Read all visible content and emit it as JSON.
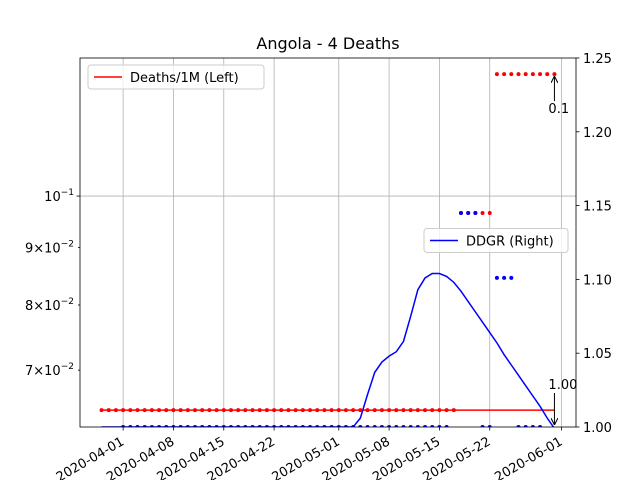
{
  "chart_data": {
    "type": "line",
    "title": "Angola - 4 Deaths",
    "x": [
      "2020-03-29",
      "2020-03-30",
      "2020-03-31",
      "2020-04-01",
      "2020-04-02",
      "2020-04-03",
      "2020-04-04",
      "2020-04-05",
      "2020-04-06",
      "2020-04-07",
      "2020-04-08",
      "2020-04-09",
      "2020-04-10",
      "2020-04-11",
      "2020-04-12",
      "2020-04-13",
      "2020-04-14",
      "2020-04-15",
      "2020-04-16",
      "2020-04-17",
      "2020-04-18",
      "2020-04-19",
      "2020-04-20",
      "2020-04-21",
      "2020-04-22",
      "2020-04-23",
      "2020-04-24",
      "2020-04-25",
      "2020-04-26",
      "2020-04-27",
      "2020-04-28",
      "2020-04-29",
      "2020-04-30",
      "2020-05-01",
      "2020-05-02",
      "2020-05-03",
      "2020-05-04",
      "2020-05-05",
      "2020-05-06",
      "2020-05-07",
      "2020-05-08",
      "2020-05-09",
      "2020-05-10",
      "2020-05-11",
      "2020-05-12",
      "2020-05-13",
      "2020-05-14",
      "2020-05-15",
      "2020-05-16",
      "2020-05-17",
      "2020-05-18",
      "2020-05-19",
      "2020-05-20",
      "2020-05-21",
      "2020-05-22",
      "2020-05-23",
      "2020-05-24",
      "2020-05-25",
      "2020-05-26",
      "2020-05-27",
      "2020-05-28",
      "2020-05-29",
      "2020-05-30",
      "2020-05-31"
    ],
    "xlim": [
      "2020-03-26",
      "2020-06-03"
    ],
    "xticks": [
      "2020-04-01",
      "2020-04-08",
      "2020-04-15",
      "2020-04-22",
      "2020-05-01",
      "2020-05-08",
      "2020-05-15",
      "2020-05-22",
      "2020-06-01"
    ],
    "ylim": [
      0.0623,
      0.1327
    ],
    "y_scale": "log",
    "yticks": [
      {
        "value": 0.07,
        "label": "7×10",
        "exp": "−2",
        "minor": true
      },
      {
        "value": 0.08,
        "label": "8×10",
        "exp": "−2",
        "minor": true
      },
      {
        "value": 0.09,
        "label": "9×10",
        "exp": "−2",
        "minor": true
      },
      {
        "value": 0.1,
        "label": "10",
        "exp": "−1"
      }
    ],
    "y2lim": [
      1.0,
      1.25
    ],
    "y2ticks": [
      {
        "value": 1.0,
        "label": "1.00"
      },
      {
        "value": 1.05,
        "label": "1.05"
      },
      {
        "value": 1.1,
        "label": "1.10"
      },
      {
        "value": 1.15,
        "label": "1.15"
      },
      {
        "value": 1.2,
        "label": "1.20"
      },
      {
        "value": 1.25,
        "label": "1.25"
      }
    ],
    "grid": true,
    "series": [
      {
        "name": "Deaths/1M (Left)",
        "color": "#ff0000",
        "style": "line",
        "axis": "y",
        "legend": "upper left",
        "values": [
          0.0645,
          0.0645,
          0.0645,
          0.0645,
          0.0645,
          0.0645,
          0.0645,
          0.0645,
          0.0645,
          0.0645,
          0.0645,
          0.0645,
          0.0645,
          0.0645,
          0.0645,
          0.0645,
          0.0645,
          0.0645,
          0.0645,
          0.0645,
          0.0645,
          0.0645,
          0.0645,
          0.0645,
          0.0645,
          0.0645,
          0.0645,
          0.0645,
          0.0645,
          0.0645,
          0.0645,
          0.0645,
          0.0645,
          0.0645,
          0.0645,
          0.0645,
          0.0645,
          0.0645,
          0.0645,
          0.0645,
          0.0645,
          0.0645,
          0.0645,
          0.0645,
          0.0645,
          0.0645,
          0.0645,
          0.0645,
          0.0645,
          0.0645,
          0.0645,
          0.0645,
          0.0645,
          0.0645,
          0.0645,
          0.0645,
          0.0645,
          0.0645,
          0.0645,
          0.0645,
          0.0645,
          0.0645,
          0.0645,
          0.0645
        ]
      },
      {
        "name": "DDGR (Right)",
        "color": "#0000ff",
        "style": "line",
        "axis": "y2",
        "legend": "center right",
        "values": [
          1.0,
          1.0,
          1.0,
          1.0,
          1.0,
          1.0,
          1.0,
          1.0,
          1.0,
          1.0,
          1.0,
          1.0,
          1.0,
          1.0,
          1.0,
          1.0,
          1.0,
          1.0,
          1.0,
          1.0,
          1.0,
          1.0,
          1.0,
          1.0,
          1.0,
          1.0,
          1.0,
          1.0,
          1.0,
          1.0,
          1.0,
          1.0,
          1.0,
          1.0,
          1.0,
          1.0,
          1.006,
          1.022,
          1.037,
          1.044,
          1.048,
          1.051,
          1.058,
          1.075,
          1.093,
          1.101,
          1.104,
          1.104,
          1.102,
          1.098,
          1.092,
          1.085,
          1.078,
          1.071,
          1.064,
          1.057,
          1.049,
          1.042,
          1.035,
          1.028,
          1.021,
          1.014,
          1.006,
          0.999
        ]
      },
      {
        "color": "#ff0000",
        "style": "dots",
        "axis": "y",
        "values": [
          0.0645,
          0.0645,
          0.0645,
          0.0645,
          0.0645,
          0.0645,
          0.0645,
          0.0645,
          0.0645,
          0.0645,
          0.0645,
          0.0645,
          0.0645,
          0.0645,
          0.0645,
          0.0645,
          0.0645,
          0.0645,
          0.0645,
          0.0645,
          0.0645,
          0.0645,
          0.0645,
          0.0645,
          0.0645,
          0.0645,
          0.0645,
          0.0645,
          0.0645,
          0.0645,
          0.0645,
          0.0645,
          0.0645,
          0.0645,
          0.0645,
          0.0645,
          0.0645,
          0.0645,
          0.0645,
          0.0645,
          0.0645,
          0.0645,
          0.0645,
          0.0645,
          0.0645,
          0.0645,
          0.0645,
          0.0645,
          0.0645,
          0.0645,
          0.0966,
          0.0966,
          0.0966,
          0.0966,
          0.0966,
          0.1284,
          0.1284,
          0.1284,
          0.1284,
          0.1284,
          0.1284,
          0.1284,
          0.1284,
          0.1284
        ]
      },
      {
        "color": "#0000ff",
        "style": "dots",
        "axis": "y2",
        "values": [
          null,
          null,
          null,
          1.0,
          1.0,
          1.0,
          1.0,
          1.0,
          1.0,
          1.0,
          1.0,
          1.0,
          1.0,
          1.0,
          1.0,
          1.0,
          1.0,
          1.0,
          1.0,
          1.0,
          1.0,
          1.0,
          1.0,
          1.0,
          1.0,
          1.0,
          1.0,
          1.0,
          1.0,
          1.0,
          1.0,
          1.0,
          1.0,
          1.0,
          1.0,
          1.0,
          1.0,
          1.0,
          1.0,
          1.0,
          1.0,
          1.0,
          1.0,
          1.0,
          1.0,
          1.0,
          1.0,
          1.0,
          1.0,
          null,
          1.145,
          1.145,
          1.145,
          1.0,
          1.0,
          1.101,
          1.101,
          1.101,
          1.0,
          1.0,
          1.0,
          1.0,
          null,
          null
        ]
      }
    ],
    "annotations": [
      {
        "text": "0.1",
        "x": "2020-05-31",
        "y": 0.1284,
        "axis": "y",
        "text_position": "below"
      },
      {
        "text": "1.00",
        "x": "2020-05-31",
        "y": 1.0,
        "axis": "y2",
        "text_position": "above"
      }
    ]
  }
}
